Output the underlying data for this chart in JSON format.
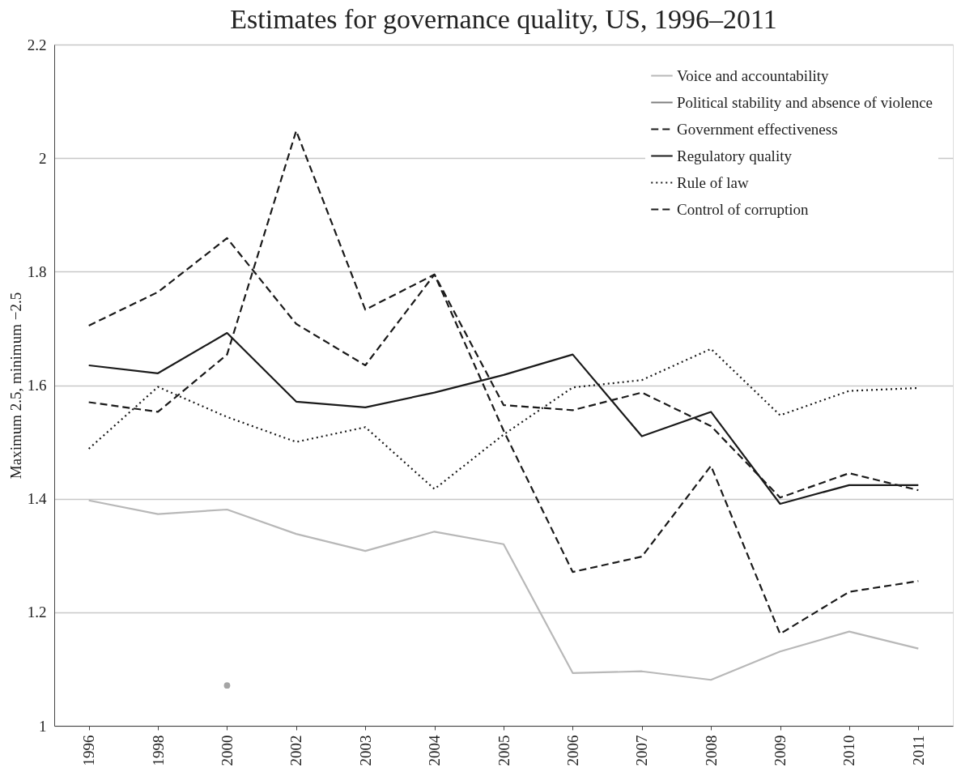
{
  "chart_data": {
    "type": "line",
    "title": "Estimates for governance quality, US, 1996–2011",
    "ylabel": "Maximum 2.5, minimum −2.5",
    "categories": [
      "1996",
      "1998",
      "2000",
      "2002",
      "2003",
      "2004",
      "2005",
      "2006",
      "2007",
      "2008",
      "2009",
      "2010",
      "2011"
    ],
    "series": [
      {
        "name": "Voice and accountability",
        "color": "#b8b8b8",
        "line_style": "solid",
        "values": [
          1.397,
          1.373,
          1.381,
          1.338,
          1.308,
          1.342,
          1.32,
          1.093,
          1.096,
          1.081,
          1.131,
          1.166,
          1.136
        ]
      },
      {
        "name": "Political stability and absence of violence",
        "color": "#7f7f7f",
        "line_style": "solid",
        "marker": "circle",
        "values": [
          null,
          null,
          1.071,
          null,
          null,
          null,
          null,
          null,
          null,
          null,
          null,
          null,
          null
        ]
      },
      {
        "name": "Government effectiveness",
        "color": "#1a1a1a",
        "line_style": "dashed",
        "values": [
          1.705,
          1.764,
          1.859,
          1.708,
          1.635,
          1.795,
          1.565,
          1.556,
          1.587,
          1.528,
          1.402,
          1.445,
          1.415
        ]
      },
      {
        "name": "Regulatory quality",
        "color": "#1a1a1a",
        "line_style": "solid",
        "values": [
          1.635,
          1.621,
          1.692,
          1.571,
          1.561,
          1.587,
          1.618,
          1.654,
          1.51,
          1.553,
          1.391,
          1.424,
          1.424
        ]
      },
      {
        "name": "Rule of law",
        "color": "#1a1a1a",
        "line_style": "dotted",
        "values": [
          1.488,
          1.597,
          1.544,
          1.5,
          1.526,
          1.417,
          1.513,
          1.596,
          1.609,
          1.664,
          1.547,
          1.59,
          1.595
        ]
      },
      {
        "name": "Control of corruption",
        "color": "#1a1a1a",
        "line_style": "dashed",
        "values": [
          1.57,
          1.553,
          1.654,
          2.048,
          1.733,
          1.795,
          1.52,
          1.271,
          1.298,
          1.458,
          1.162,
          1.236,
          1.255
        ]
      }
    ],
    "ylim": [
      1,
      2.2
    ],
    "yticks": [
      1,
      1.2,
      1.4,
      1.6,
      1.8,
      2,
      2.2
    ],
    "grid": "y",
    "legend": "top right",
    "marker": "none"
  }
}
